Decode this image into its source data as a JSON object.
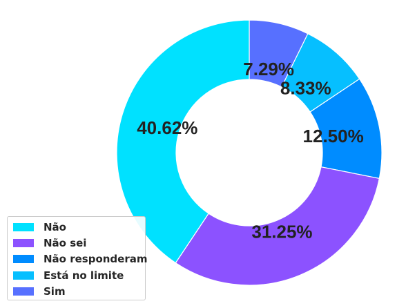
{
  "chart_data": {
    "type": "pie",
    "donut": true,
    "title": "",
    "start": "top, clockwise",
    "slices": [
      {
        "label": "Sim",
        "value": 7.29,
        "display": "7.29%",
        "color": "#5770ff"
      },
      {
        "label": "Está no limite",
        "value": 8.33,
        "display": "8.33%",
        "color": "#06bfff"
      },
      {
        "label": "Não responderam",
        "value": 12.5,
        "display": "12.50%",
        "color": "#008cff"
      },
      {
        "label": "Não sei",
        "value": 31.25,
        "display": "31.25%",
        "color": "#8c52ff"
      },
      {
        "label": "Não",
        "value": 40.62,
        "display": "40.62%",
        "color": "#00e1ff"
      }
    ],
    "legend": {
      "placement": "lower-left",
      "order": [
        "Não",
        "Não sei",
        "Não responderam",
        "Está no limite",
        "Sim"
      ]
    }
  }
}
